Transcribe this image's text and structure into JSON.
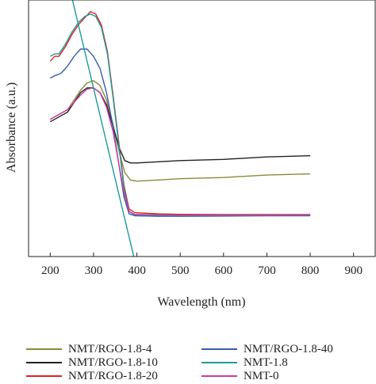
{
  "chart_data": {
    "type": "line",
    "xlabel": "Wavelength (nm)",
    "ylabel": "Absorbance (a.u.)",
    "xlim": [
      150,
      950
    ],
    "x_ticks": [
      200,
      300,
      400,
      500,
      600,
      700,
      800,
      900
    ],
    "y_ticks": [],
    "legend_position": "below",
    "series": [
      {
        "name": "NMT/RGO-1.8-4",
        "color": "#8a8a3a",
        "points": [
          [
            200,
            0.54
          ],
          [
            220,
            0.56
          ],
          [
            240,
            0.58
          ],
          [
            255,
            0.62
          ],
          [
            270,
            0.66
          ],
          [
            285,
            0.69
          ],
          [
            300,
            0.7
          ],
          [
            315,
            0.68
          ],
          [
            330,
            0.62
          ],
          [
            345,
            0.52
          ],
          [
            360,
            0.4
          ],
          [
            372,
            0.32
          ],
          [
            385,
            0.29
          ],
          [
            400,
            0.285
          ],
          [
            450,
            0.29
          ],
          [
            500,
            0.295
          ],
          [
            600,
            0.3
          ],
          [
            700,
            0.31
          ],
          [
            800,
            0.315
          ]
        ]
      },
      {
        "name": "NMT/RGO-1.8-10",
        "color": "#222222",
        "points": [
          [
            200,
            0.53
          ],
          [
            220,
            0.55
          ],
          [
            240,
            0.57
          ],
          [
            255,
            0.61
          ],
          [
            270,
            0.65
          ],
          [
            285,
            0.67
          ],
          [
            300,
            0.67
          ],
          [
            315,
            0.65
          ],
          [
            330,
            0.6
          ],
          [
            345,
            0.51
          ],
          [
            360,
            0.42
          ],
          [
            372,
            0.37
          ],
          [
            385,
            0.36
          ],
          [
            400,
            0.36
          ],
          [
            450,
            0.365
          ],
          [
            500,
            0.37
          ],
          [
            600,
            0.375
          ],
          [
            700,
            0.385
          ],
          [
            800,
            0.39
          ]
        ]
      },
      {
        "name": "NMT/RGO-1.8-20",
        "color": "#e02020",
        "points": [
          [
            200,
            0.78
          ],
          [
            210,
            0.8
          ],
          [
            220,
            0.8
          ],
          [
            235,
            0.84
          ],
          [
            250,
            0.89
          ],
          [
            265,
            0.93
          ],
          [
            280,
            0.96
          ],
          [
            293,
            0.985
          ],
          [
            305,
            0.975
          ],
          [
            318,
            0.93
          ],
          [
            332,
            0.82
          ],
          [
            345,
            0.64
          ],
          [
            358,
            0.45
          ],
          [
            370,
            0.27
          ],
          [
            382,
            0.17
          ],
          [
            395,
            0.155
          ],
          [
            450,
            0.15
          ],
          [
            500,
            0.148
          ],
          [
            600,
            0.147
          ],
          [
            700,
            0.147
          ],
          [
            800,
            0.147
          ]
        ]
      },
      {
        "name": "NMT/RGO-1.8-40",
        "color": "#3a5cb0",
        "points": [
          [
            200,
            0.71
          ],
          [
            210,
            0.72
          ],
          [
            225,
            0.73
          ],
          [
            240,
            0.76
          ],
          [
            255,
            0.8
          ],
          [
            270,
            0.83
          ],
          [
            285,
            0.83
          ],
          [
            300,
            0.8
          ],
          [
            315,
            0.75
          ],
          [
            330,
            0.65
          ],
          [
            345,
            0.51
          ],
          [
            358,
            0.36
          ],
          [
            370,
            0.22
          ],
          [
            382,
            0.15
          ],
          [
            395,
            0.142
          ],
          [
            450,
            0.14
          ],
          [
            500,
            0.14
          ],
          [
            600,
            0.141
          ],
          [
            700,
            0.142
          ],
          [
            800,
            0.142
          ]
        ]
      },
      {
        "name": "NMT-1.8",
        "color": "#1f9a9a",
        "points": [
          [
            200,
            0.8
          ],
          [
            210,
            0.81
          ],
          [
            220,
            0.81
          ],
          [
            235,
            0.85
          ],
          [
            250,
            0.9
          ],
          [
            265,
            0.94
          ],
          [
            280,
            0.965
          ],
          [
            293,
            0.975
          ],
          [
            305,
            0.965
          ],
          [
            318,
            0.92
          ],
          [
            332,
            0.81
          ],
          [
            345,
            0.63
          ],
          [
            358,
            0.44
          ],
          [
            370,
            0.26
          ],
          [
            382,
            0.16
          ],
          [
            395,
            0.145
          ],
          [
            450,
            0.143
          ],
          [
            500,
            0.143
          ],
          [
            600,
            0.143
          ],
          [
            700,
            0.144
          ],
          [
            800,
            0.145
          ]
        ]
      },
      {
        "name": "NMT-0",
        "color": "#cc3aa0",
        "points": [
          [
            200,
            0.54
          ],
          [
            220,
            0.56
          ],
          [
            240,
            0.58
          ],
          [
            255,
            0.61
          ],
          [
            270,
            0.64
          ],
          [
            285,
            0.665
          ],
          [
            300,
            0.67
          ],
          [
            315,
            0.65
          ],
          [
            330,
            0.59
          ],
          [
            345,
            0.49
          ],
          [
            358,
            0.36
          ],
          [
            370,
            0.24
          ],
          [
            382,
            0.16
          ],
          [
            395,
            0.148
          ],
          [
            450,
            0.146
          ],
          [
            500,
            0.145
          ],
          [
            600,
            0.145
          ],
          [
            700,
            0.145
          ],
          [
            800,
            0.146
          ]
        ]
      }
    ],
    "annotations": [
      {
        "type": "tangent-line",
        "color": "#1f9a9a",
        "from": [
          245,
          1.08
        ],
        "to": [
          400,
          -0.08
        ]
      }
    ]
  }
}
